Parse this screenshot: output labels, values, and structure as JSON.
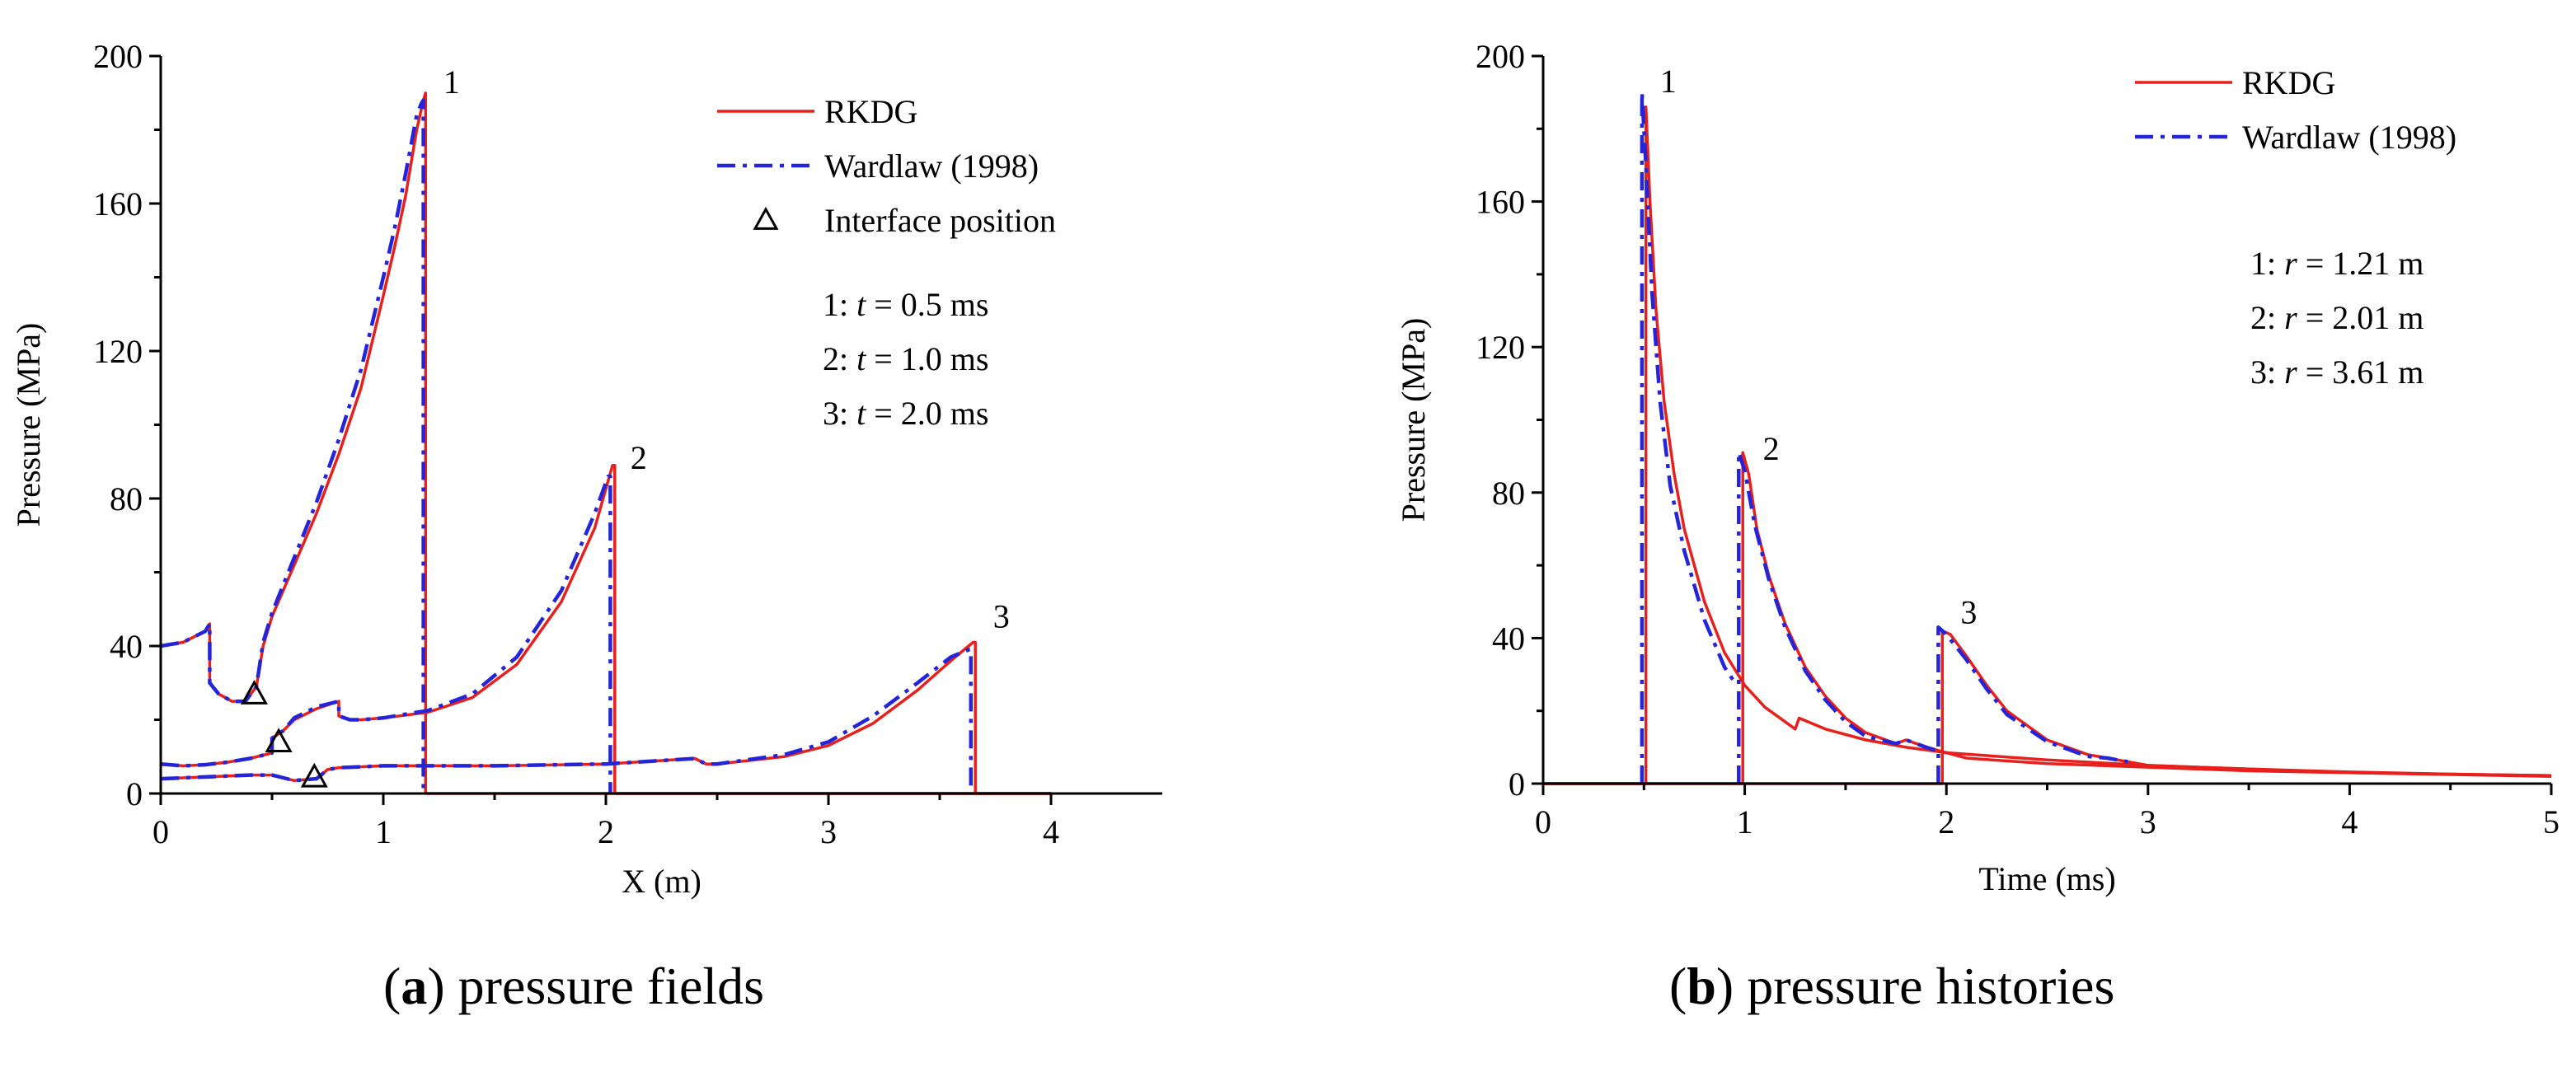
{
  "colors": {
    "rkdg": "#e8201d",
    "wardlaw": "#2424d9",
    "axis": "#000000"
  },
  "captions": {
    "a": {
      "letter": "a",
      "text": "pressure fields"
    },
    "b": {
      "letter": "b",
      "text": "pressure histories"
    }
  },
  "chart_data": [
    {
      "type": "line",
      "panel": "a",
      "title": "",
      "xlabel": "X (m)",
      "ylabel": "Pressure (MPa)",
      "xlim": [
        0,
        4.5
      ],
      "ylim": [
        0,
        200
      ],
      "xticks": [
        0,
        1,
        2,
        3,
        4
      ],
      "yticks": [
        0,
        40,
        80,
        120,
        160,
        200
      ],
      "legend": {
        "placement": "top-right",
        "entries": [
          {
            "key": "rkdg",
            "label": "RKDG"
          },
          {
            "key": "wardlaw",
            "label": "Wardlaw (1998)"
          },
          {
            "key": "interface",
            "label": "Interface position"
          }
        ]
      },
      "notes": [
        {
          "prefix": "1: ",
          "var": "t",
          "rest": " = 0.5 ms"
        },
        {
          "prefix": "2: ",
          "var": "t",
          "rest": " = 1.0 ms"
        },
        {
          "prefix": "3: ",
          "var": "t",
          "rest": " = 2.0 ms"
        }
      ],
      "curve_labels": [
        {
          "text": "1",
          "x": 1.27,
          "y": 190
        },
        {
          "text": "2",
          "x": 2.11,
          "y": 88
        },
        {
          "text": "3",
          "x": 3.74,
          "y": 45
        }
      ],
      "interface_markers": [
        {
          "x": 0.42,
          "y": 27
        },
        {
          "x": 0.53,
          "y": 14
        },
        {
          "x": 0.69,
          "y": 4.5
        }
      ],
      "series": [
        {
          "name": "RKDG",
          "key": "rkdg",
          "curve": "1",
          "x": [
            0,
            0.1,
            0.2,
            0.22,
            0.22,
            0.26,
            0.32,
            0.38,
            0.43,
            0.46,
            0.5,
            0.6,
            0.7,
            0.8,
            0.9,
            1.0,
            1.05,
            1.1,
            1.15,
            1.18,
            1.19,
            1.19,
            1.2,
            1.4,
            1.8,
            2.4,
            3.0,
            3.6,
            4.0
          ],
          "y": [
            40,
            41,
            44,
            46,
            30,
            27,
            25,
            25,
            29,
            40,
            48,
            62,
            76,
            92,
            110,
            135,
            148,
            162,
            180,
            188,
            190,
            0,
            0,
            0,
            0,
            0,
            0,
            0,
            0
          ]
        },
        {
          "name": "Wardlaw (1998)",
          "key": "wardlaw",
          "curve": "1",
          "x": [
            0,
            0.1,
            0.2,
            0.22,
            0.22,
            0.26,
            0.32,
            0.38,
            0.43,
            0.46,
            0.5,
            0.6,
            0.7,
            0.8,
            0.9,
            1.0,
            1.05,
            1.1,
            1.15,
            1.17,
            1.18,
            1.18
          ],
          "y": [
            40,
            41,
            44,
            46,
            30,
            27,
            25,
            25,
            29,
            41,
            49,
            64,
            79,
            96,
            115,
            140,
            153,
            168,
            184,
            187,
            188,
            0
          ]
        },
        {
          "name": "RKDG",
          "key": "rkdg",
          "curve": "2",
          "x": [
            0,
            0.1,
            0.2,
            0.3,
            0.4,
            0.5,
            0.5,
            0.55,
            0.6,
            0.7,
            0.8,
            0.8,
            0.85,
            0.9,
            1.0,
            1.2,
            1.4,
            1.6,
            1.8,
            1.95,
            2.03,
            2.04,
            2.04,
            2.2,
            3.0,
            4.0
          ],
          "y": [
            8,
            7.5,
            7.8,
            8.5,
            9.5,
            11,
            15,
            17,
            20,
            23,
            25,
            21,
            20,
            20,
            20.5,
            22,
            26,
            35,
            52,
            72,
            89,
            89,
            0,
            0,
            0,
            0
          ]
        },
        {
          "name": "Wardlaw (1998)",
          "key": "wardlaw",
          "curve": "2",
          "x": [
            0,
            0.1,
            0.2,
            0.3,
            0.4,
            0.5,
            0.5,
            0.55,
            0.6,
            0.7,
            0.8,
            0.8,
            0.85,
            0.9,
            1.0,
            1.2,
            1.4,
            1.6,
            1.8,
            1.95,
            2.01,
            2.02,
            2.02
          ],
          "y": [
            8,
            7.5,
            7.8,
            8.5,
            9.5,
            11,
            15,
            17,
            20.5,
            23.5,
            25,
            21,
            20,
            20,
            20.5,
            22.5,
            27,
            37,
            55,
            76,
            86,
            86,
            0
          ]
        },
        {
          "name": "RKDG",
          "key": "rkdg",
          "curve": "3",
          "x": [
            0,
            0.2,
            0.4,
            0.5,
            0.6,
            0.7,
            0.75,
            0.8,
            1.0,
            1.5,
            2.0,
            2.4,
            2.45,
            2.5,
            2.8,
            3.0,
            3.2,
            3.4,
            3.55,
            3.65,
            3.66,
            3.66,
            4.0
          ],
          "y": [
            4,
            4.5,
            5,
            5,
            3.5,
            4,
            6.5,
            7,
            7.5,
            7.5,
            8,
            9.5,
            8,
            8,
            10,
            13,
            19,
            28,
            36,
            41,
            41,
            0,
            0
          ]
        },
        {
          "name": "Wardlaw (1998)",
          "key": "wardlaw",
          "curve": "3",
          "x": [
            0,
            0.2,
            0.4,
            0.5,
            0.6,
            0.7,
            0.75,
            0.8,
            1.0,
            1.5,
            2.0,
            2.4,
            2.45,
            2.5,
            2.8,
            3.0,
            3.2,
            3.4,
            3.55,
            3.63,
            3.64,
            3.64
          ],
          "y": [
            4,
            4.5,
            5,
            5,
            3.5,
            4,
            6.5,
            7,
            7.5,
            7.5,
            8,
            9.5,
            8,
            8,
            10.5,
            14,
            21,
            30,
            37,
            39,
            39,
            0
          ]
        }
      ]
    },
    {
      "type": "line",
      "panel": "b",
      "title": "",
      "xlabel": "Time (ms)",
      "ylabel": "Pressure (MPa)",
      "xlim": [
        0,
        5
      ],
      "ylim": [
        0,
        200
      ],
      "xticks": [
        0,
        1,
        2,
        3,
        4,
        5
      ],
      "yticks": [
        0,
        40,
        80,
        120,
        160,
        200
      ],
      "legend": {
        "placement": "top-right",
        "entries": [
          {
            "key": "rkdg",
            "label": "RKDG"
          },
          {
            "key": "wardlaw",
            "label": "Wardlaw (1998)"
          }
        ]
      },
      "notes": [
        {
          "prefix": "1: ",
          "var": "r",
          "rest": " = 1.21 m"
        },
        {
          "prefix": "2: ",
          "var": "r",
          "rest": " = 2.01 m"
        },
        {
          "prefix": "3: ",
          "var": "r",
          "rest": " = 3.61 m"
        }
      ],
      "curve_labels": [
        {
          "text": "1",
          "x": 0.58,
          "y": 190
        },
        {
          "text": "2",
          "x": 1.09,
          "y": 89
        },
        {
          "text": "3",
          "x": 2.07,
          "y": 44
        }
      ],
      "interface_markers": [],
      "series": [
        {
          "name": "RKDG",
          "key": "rkdg",
          "curve": "1",
          "x": [
            0,
            0.51,
            0.51,
            0.53,
            0.56,
            0.6,
            0.65,
            0.7,
            0.8,
            0.9,
            1.0,
            1.1,
            1.2,
            1.25,
            1.27,
            1.4,
            1.6,
            1.8,
            2.0,
            2.5,
            3.0,
            3.5,
            4.0,
            4.5,
            5.0
          ],
          "y": [
            0,
            0,
            186,
            160,
            130,
            105,
            85,
            70,
            50,
            36,
            27,
            21,
            17,
            15,
            18,
            15,
            12,
            10,
            8.5,
            6.5,
            5,
            4,
            3.2,
            2.6,
            2.2
          ]
        },
        {
          "name": "Wardlaw (1998)",
          "key": "wardlaw",
          "curve": "1",
          "x": [
            0.49,
            0.49,
            0.51,
            0.54,
            0.58,
            0.63,
            0.7,
            0.8,
            0.9,
            0.96
          ],
          "y": [
            0,
            190,
            170,
            135,
            105,
            82,
            64,
            45,
            32,
            27
          ]
        },
        {
          "name": "RKDG",
          "key": "rkdg",
          "curve": "2",
          "x": [
            0,
            0.99,
            0.99,
            1.02,
            1.06,
            1.12,
            1.2,
            1.3,
            1.4,
            1.5,
            1.6,
            1.75,
            1.8,
            1.9,
            2.0,
            2.1,
            2.5,
            3.0,
            3.5,
            4.0,
            4.5,
            5.0
          ],
          "y": [
            0,
            0,
            91,
            85,
            70,
            57,
            44,
            32,
            24,
            18,
            14,
            11,
            12,
            10,
            8.5,
            7,
            5.5,
            4.5,
            3.5,
            3,
            2.6,
            2.2
          ]
        },
        {
          "name": "Wardlaw (1998)",
          "key": "wardlaw",
          "curve": "2",
          "x": [
            0.97,
            0.97,
            1.0,
            1.05,
            1.12,
            1.2,
            1.3,
            1.4,
            1.5,
            1.6,
            1.75,
            1.8,
            1.9,
            1.96
          ],
          "y": [
            0,
            91,
            86,
            71,
            56,
            43,
            31,
            23,
            17,
            13,
            11,
            12,
            10,
            9
          ]
        },
        {
          "name": "RKDG",
          "key": "rkdg",
          "curve": "3",
          "x": [
            0,
            1.98,
            1.98,
            2.02,
            2.1,
            2.2,
            2.3,
            2.5,
            2.7,
            2.8,
            2.9,
            3.0,
            3.5,
            4.0,
            4.5,
            5.0
          ],
          "y": [
            0,
            0,
            42,
            41,
            35,
            27,
            20,
            12,
            8,
            7,
            6,
            5,
            4,
            3,
            2.5,
            2
          ]
        },
        {
          "name": "Wardlaw (1998)",
          "key": "wardlaw",
          "curve": "3",
          "x": [
            1.96,
            1.96,
            2.0,
            2.1,
            2.2,
            2.3,
            2.5,
            2.7,
            2.8,
            2.9
          ],
          "y": [
            0,
            43,
            41,
            34,
            26,
            19,
            11.5,
            7.5,
            7,
            6
          ]
        }
      ]
    }
  ]
}
